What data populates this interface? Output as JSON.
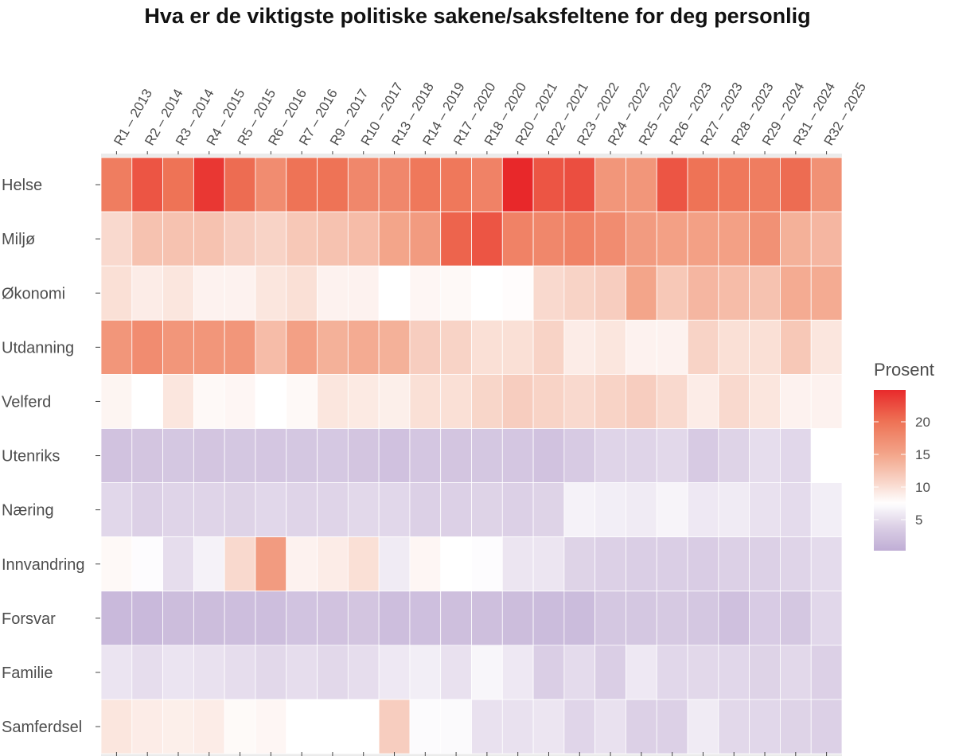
{
  "chart_data": {
    "type": "heatmap",
    "title": "Hva er de viktigste politiske sakene/saksfeltene for deg personlig",
    "xlabel": "",
    "ylabel": "",
    "x": [
      "R1 – 2013",
      "R2 – 2014",
      "R3 – 2014",
      "R4 – 2015",
      "R5 – 2015",
      "R6 – 2016",
      "R7 – 2016",
      "R9 – 2017",
      "R10 – 2017",
      "R13 – 2018",
      "R14 – 2019",
      "R17 – 2020",
      "R18 – 2020",
      "R20 – 2021",
      "R22 – 2021",
      "R23 – 2022",
      "R24 – 2022",
      "R25 – 2022",
      "R26 – 2023",
      "R27 – 2023",
      "R28 – 2023",
      "R29 – 2024",
      "R31 – 2024",
      "R32 – 2025"
    ],
    "y": [
      "Helse",
      "Miljø",
      "Økonomi",
      "Utdanning",
      "Velferd",
      "Utenriks",
      "Næring",
      "Innvandring",
      "Forsvar",
      "Familie",
      "Samferdsel"
    ],
    "values": [
      [
        19,
        22,
        20,
        24,
        20.5,
        17.5,
        20,
        20,
        18,
        18,
        19.5,
        19.5,
        18.5,
        25,
        22,
        22.5,
        16.5,
        16.5,
        22,
        20,
        19.5,
        19,
        20.5,
        17
      ],
      [
        10.5,
        12.5,
        12.5,
        12.5,
        11.5,
        11,
        12,
        12.5,
        13,
        15,
        16,
        21,
        22,
        18.5,
        18,
        18.5,
        17.5,
        16,
        15.5,
        15.5,
        15.5,
        17,
        14,
        13.5
      ],
      [
        10,
        9,
        9.5,
        8.5,
        8.5,
        9.5,
        10,
        8.5,
        8.5,
        7.5,
        8.2,
        8,
        7.5,
        7.7,
        10.5,
        11,
        11.5,
        15,
        12,
        13.5,
        13,
        12.5,
        14.5,
        14.5
      ],
      [
        16.5,
        17.5,
        16.5,
        16.5,
        16.5,
        13,
        15.5,
        14,
        14.5,
        14,
        11.5,
        11,
        10,
        10,
        11,
        9,
        9.5,
        8.5,
        8.5,
        11,
        10,
        10,
        12,
        9.5
      ],
      [
        8.3,
        7.5,
        9.5,
        8,
        8.2,
        7.5,
        8,
        9.5,
        9.2,
        8.8,
        10,
        10,
        10.8,
        11.5,
        11,
        10.5,
        11,
        11.5,
        10.5,
        9,
        10.5,
        9.5,
        8.5,
        8.5
      ],
      [
        2.5,
        2.8,
        3,
        2.8,
        3,
        2.9,
        3,
        3.1,
        2.8,
        2.4,
        2.9,
        2.8,
        3,
        2.9,
        2.5,
        3.3,
        4.3,
        4.3,
        4.6,
        3.3,
        4.2,
        5,
        4.5,
        7.5
      ],
      [
        4.5,
        4,
        4.3,
        4.3,
        4.2,
        4.5,
        4.3,
        4.3,
        4.6,
        4.5,
        4,
        4,
        4.2,
        4,
        4.2,
        6.5,
        6.2,
        6,
        6.7,
        5.8,
        6,
        5.3,
        4.8,
        6.2
      ],
      [
        8,
        7.3,
        5,
        6.5,
        10.5,
        16,
        8.5,
        9,
        10,
        6,
        8.2,
        7.5,
        7.3,
        5.6,
        5.6,
        4.2,
        4,
        3.8,
        3.8,
        3.6,
        4,
        4,
        4.3,
        4.8
      ],
      [
        1.5,
        1.5,
        1.9,
        1.9,
        2,
        2,
        2.6,
        2.5,
        2.8,
        2,
        2.2,
        2.1,
        2.1,
        1.9,
        1.8,
        1.8,
        3,
        3,
        3.2,
        3,
        2.3,
        3.5,
        3,
        4.5
      ],
      [
        5.5,
        5,
        5.5,
        5.3,
        5,
        4.6,
        5,
        4.6,
        5,
        5.8,
        6.2,
        5.3,
        6.8,
        5.8,
        3.8,
        4.8,
        3.8,
        5.8,
        4.5,
        4.6,
        4.5,
        4.2,
        4.6,
        4
      ],
      [
        9.5,
        9,
        8.8,
        9,
        7.9,
        8.2,
        7.5,
        7.5,
        7.5,
        11.5,
        7.2,
        7.1,
        5.3,
        5.3,
        5.6,
        4.4,
        5.3,
        4,
        4,
        6,
        4.6,
        4.5,
        4.2,
        4
      ]
    ],
    "legend": {
      "title": "Prosent",
      "ticks": [
        5,
        10,
        15,
        20
      ],
      "placement": "right"
    },
    "color_scale": {
      "low": "#c0aed5",
      "mid": "#ffffff",
      "high": "#e8282a",
      "range": [
        0.3,
        25
      ]
    }
  }
}
